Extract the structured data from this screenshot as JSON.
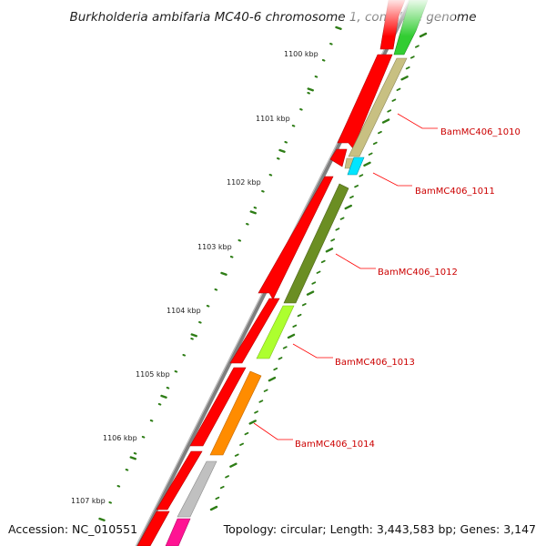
{
  "title": "Burkholderia ambifaria MC40-6 chromosome 1, complete genome",
  "footer": {
    "accession": "Accession: NC_010551",
    "info": "Topology: circular; Length: 3,443,583 bp; Genes: 3,147"
  },
  "scale_labels": [
    "1100 kbp",
    "1101 kbp",
    "1102 kbp",
    "1103 kbp",
    "1104 kbp",
    "1105 kbp",
    "1106 kbp",
    "1107 kbp"
  ],
  "gene_labels": [
    "BamMC406_1010",
    "BamMC406_1011",
    "BamMC406_1012",
    "BamMC406_1013",
    "BamMC406_1014"
  ],
  "colors": {
    "backbone": "#7f7f7f",
    "cds_red": "#ff0000",
    "label_red": "#cc0000",
    "tick_green": "#2e7d16",
    "gene_1010": "#c8c082",
    "gene_1011": "#00e5ff",
    "gene_1012": "#6b8e23",
    "gene_1013": "#adff2f",
    "gene_1014": "#ff8c00",
    "gene_grey": "#c0c0c0",
    "gene_pink": "#ff1493",
    "gene_green": "#32cd32"
  }
}
